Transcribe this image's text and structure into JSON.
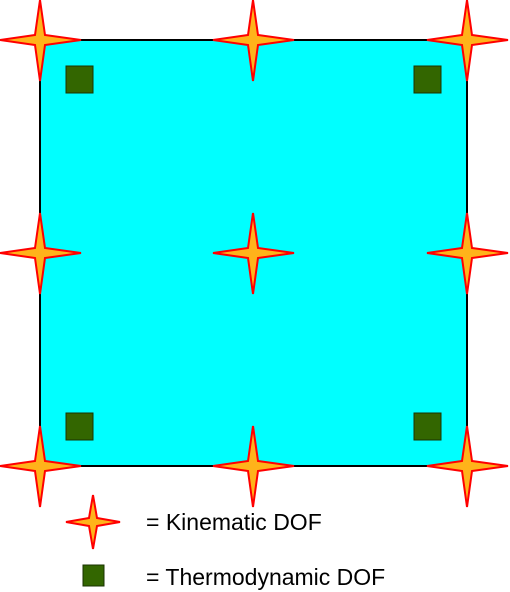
{
  "diagram": {
    "element_fill": "#00ffff",
    "element_stroke": "#000000",
    "kinematic_nodes": {
      "icon": "four-point-star-icon",
      "fill": "#ffb31a",
      "stroke": "#ff0000",
      "count": 9
    },
    "thermodynamic_nodes": {
      "icon": "filled-square-icon",
      "fill": "#336600",
      "stroke": "#1a3300",
      "count": 4
    }
  },
  "legend": {
    "kinematic_label": "= Kinematic DOF",
    "thermodynamic_label": "= Thermodynamic DOF"
  }
}
